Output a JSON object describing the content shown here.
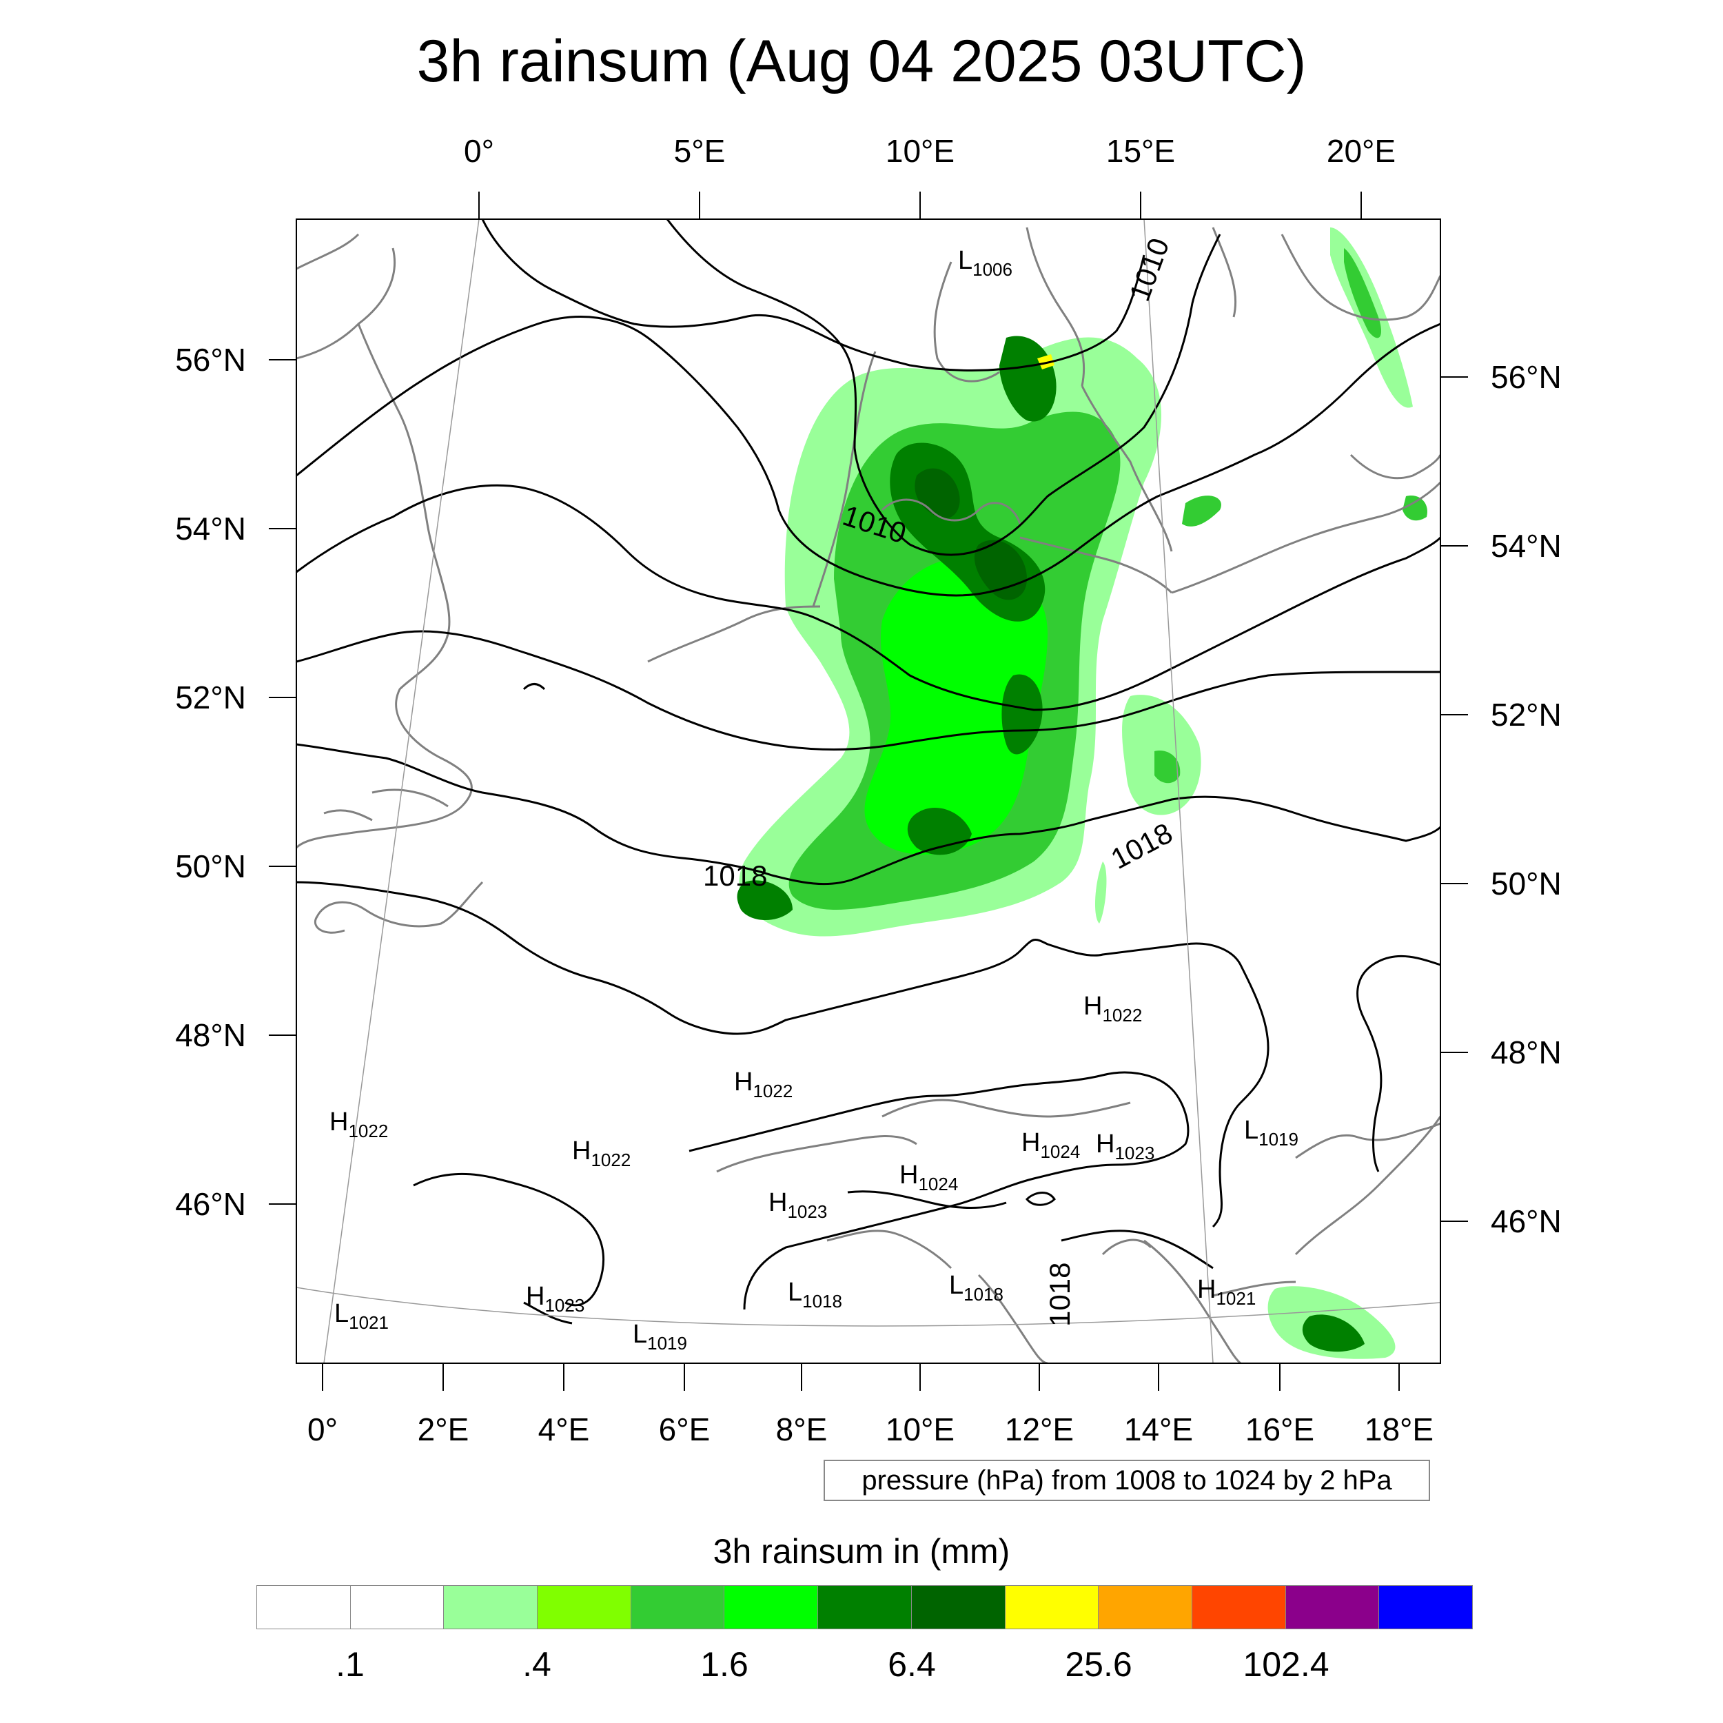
{
  "title": "3h rainsum (Aug 04 2025 03UTC)",
  "top_lon_labels": [
    "0°",
    "5°E",
    "10°E",
    "15°E",
    "20°E"
  ],
  "bottom_lon_labels": [
    "0°",
    "2°E",
    "4°E",
    "6°E",
    "8°E",
    "10°E",
    "12°E",
    "14°E",
    "16°E",
    "18°E"
  ],
  "left_lat_labels": [
    "56°N",
    "54°N",
    "52°N",
    "50°N",
    "48°N",
    "46°N"
  ],
  "right_lat_labels": [
    "56°N",
    "54°N",
    "52°N",
    "50°N",
    "48°N",
    "46°N"
  ],
  "contour_labels": [
    "1010",
    "1010",
    "1018",
    "1018",
    "1018"
  ],
  "pressure_centers": [
    {
      "type": "L",
      "value": "1006"
    },
    {
      "type": "H",
      "value": "1022"
    },
    {
      "type": "H",
      "value": "1022"
    },
    {
      "type": "H",
      "value": "1022"
    },
    {
      "type": "H",
      "value": "1022"
    },
    {
      "type": "H",
      "value": "1024"
    },
    {
      "type": "H",
      "value": "1023"
    },
    {
      "type": "L",
      "value": "1019"
    },
    {
      "type": "H",
      "value": "1024"
    },
    {
      "type": "H",
      "value": "1023"
    },
    {
      "type": "H",
      "value": "1023"
    },
    {
      "type": "L",
      "value": "1018"
    },
    {
      "type": "L",
      "value": "1018"
    },
    {
      "type": "H",
      "value": "1021"
    },
    {
      "type": "L",
      "value": "1021"
    },
    {
      "type": "L",
      "value": "1019"
    }
  ],
  "legend_text": "pressure (hPa) from 1008 to 1024 by 2 hPa",
  "colorbar": {
    "title": "3h rainsum in (mm)",
    "colors": [
      "#ffffff",
      "#ffffff",
      "#99ff99",
      "#80ff00",
      "#33cc33",
      "#00ff00",
      "#008000",
      "#006400",
      "#ffff00",
      "#ffa500",
      "#ff4500",
      "#8b008b",
      "#0000ff"
    ],
    "labels": [
      ".1",
      ".4",
      "1.6",
      "6.4",
      "25.6",
      "102.4"
    ]
  },
  "colors": {
    "coast": "#808080",
    "isobar": "#000000",
    "rain_light": "#99ff99",
    "rain_mid": "#33cc33",
    "rain_bright": "#00ff00",
    "rain_dark": "#008000",
    "rain_darkest": "#006400",
    "rain_extreme": "#ffff00"
  }
}
